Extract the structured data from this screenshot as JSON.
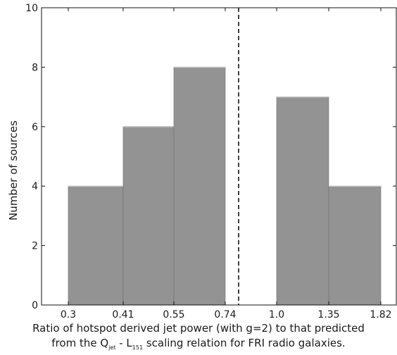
{
  "chart_data": {
    "type": "bar",
    "xlabel_line1": "Ratio of hotspot derived jet power (with g=2) to that predicted",
    "xlabel_line2": {
      "prefix": "from the Q",
      "sub1": "jet",
      "middle": " - L",
      "sub2": "151",
      "suffix": " scaling relation for FRI radio galaxies."
    },
    "ylabel": "Number of sources",
    "ylim": [
      0,
      10
    ],
    "y_ticks": [
      "0",
      "2",
      "4",
      "6",
      "8",
      "10"
    ],
    "x_tick_labels": [
      "0.3",
      "0.41",
      "0.55",
      "0.74",
      "1.0",
      "1.35",
      "1.82"
    ],
    "bins": [
      {
        "from": "0.3",
        "to": "0.41",
        "value": 4
      },
      {
        "from": "0.41",
        "to": "0.55",
        "value": 6
      },
      {
        "from": "0.55",
        "to": "0.74",
        "value": 8
      },
      {
        "from": "0.74",
        "to": "1.0",
        "value": 0
      },
      {
        "from": "1.0",
        "to": "1.35",
        "value": 7
      },
      {
        "from": "1.35",
        "to": "1.82",
        "value": 4
      }
    ],
    "reference_line": {
      "style": "dashed",
      "between": [
        "0.74",
        "1.0"
      ]
    },
    "bar_color": "#939393",
    "grid": false
  }
}
